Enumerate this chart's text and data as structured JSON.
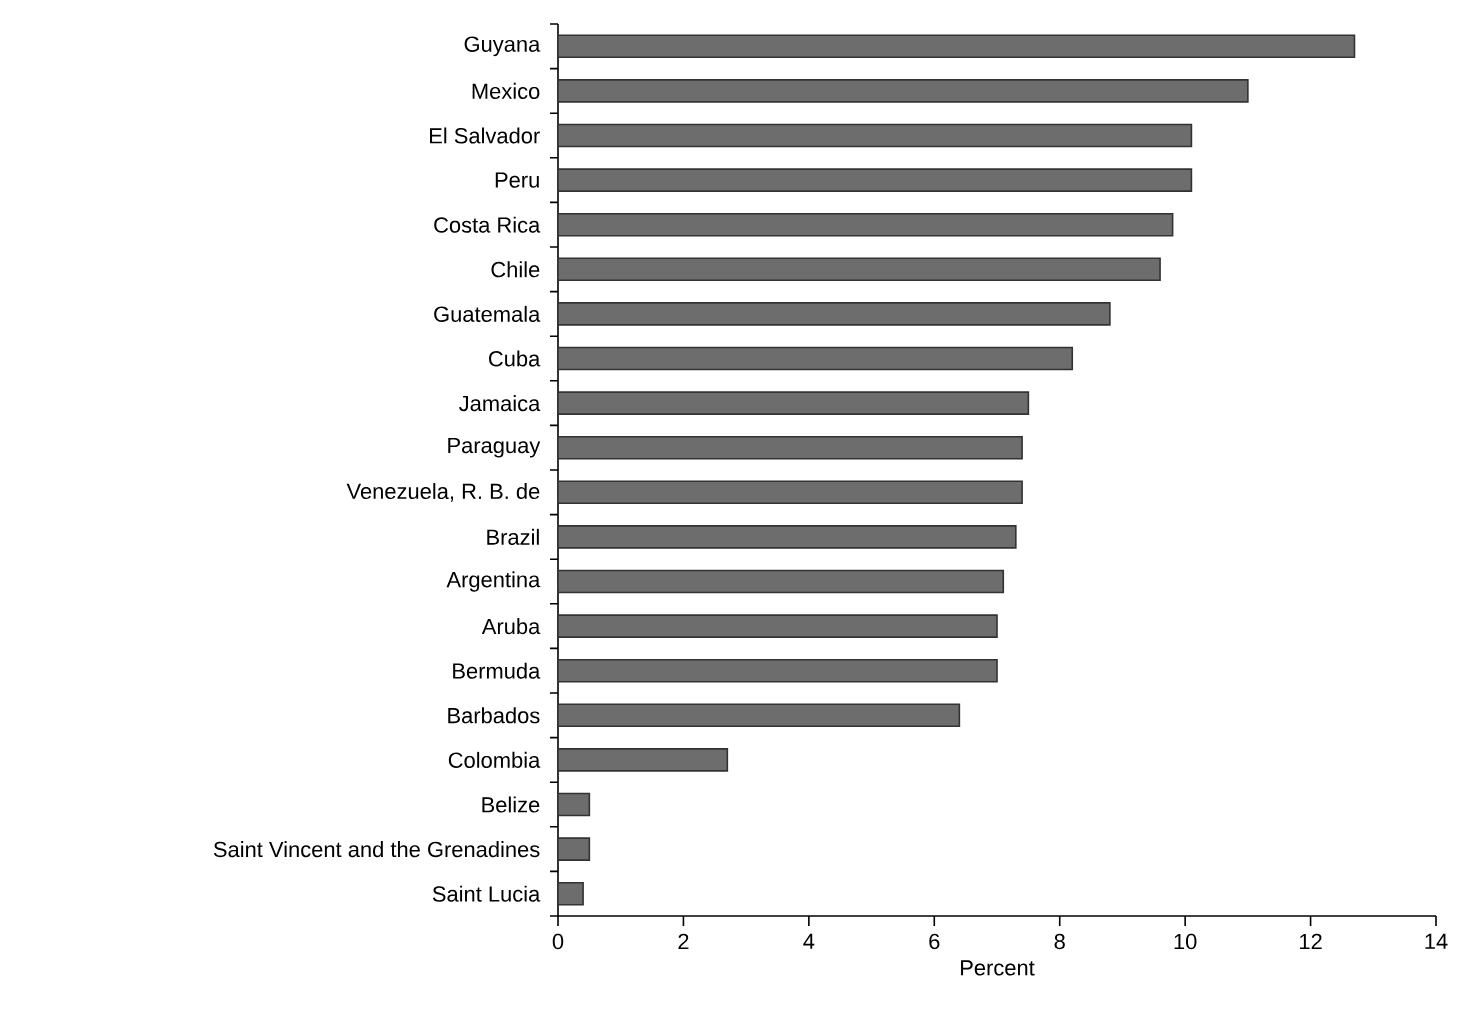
{
  "chart_data": {
    "type": "bar",
    "orientation": "horizontal",
    "xlabel": "Percent",
    "categories": [
      "Guyana",
      "Mexico",
      "El Salvador",
      "Peru",
      "Costa Rica",
      "Chile",
      "Guatemala",
      "Cuba",
      "Jamaica",
      "Paraguay",
      "Venezuela, R. B. de",
      "Brazil",
      "Argentina",
      "Aruba",
      "Bermuda",
      "Barbados",
      "Colombia",
      "Belize",
      "Saint Vincent and the Grenadines",
      "Saint Lucia"
    ],
    "values": [
      12.7,
      11.0,
      10.1,
      10.1,
      9.8,
      9.6,
      8.8,
      8.2,
      7.5,
      7.4,
      7.4,
      7.3,
      7.1,
      7.0,
      7.0,
      6.4,
      2.7,
      0.5,
      0.5,
      0.4
    ],
    "color": "#6d6d6d",
    "xlim": [
      0,
      14
    ],
    "xticks": [
      0,
      2,
      4,
      6,
      8,
      10,
      12,
      14
    ]
  }
}
